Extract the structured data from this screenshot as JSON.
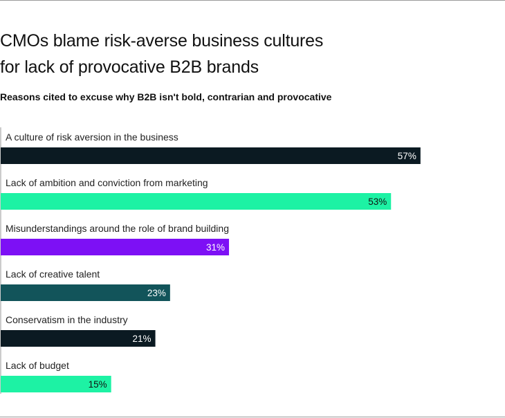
{
  "title_line1": "CMOs blame risk-averse business cultures",
  "title_line2": "for lack of provocative B2B brands",
  "subtitle": "Reasons cited to excuse why B2B isn't bold, contrarian and provocative",
  "chart_data": {
    "type": "bar",
    "orientation": "horizontal",
    "categories": [
      "A culture of risk aversion in the business",
      "Lack of ambition and conviction from marketing",
      "Misunderstandings around the role of brand building",
      "Lack of creative talent",
      "Conservatism in the industry",
      "Lack of budget"
    ],
    "values": [
      57,
      53,
      31,
      23,
      21,
      15
    ],
    "value_labels": [
      "57%",
      "53%",
      "31%",
      "23%",
      "21%",
      "15%"
    ],
    "colors": [
      "#0b1a22",
      "#1df2a4",
      "#7d10f5",
      "#12545a",
      "#0b1a22",
      "#1df2a4"
    ],
    "label_colors": [
      "#ffffff",
      "#111111",
      "#ffffff",
      "#ffffff",
      "#ffffff",
      "#111111"
    ],
    "xlim": [
      0,
      65
    ],
    "grid": false,
    "legend": false
  }
}
